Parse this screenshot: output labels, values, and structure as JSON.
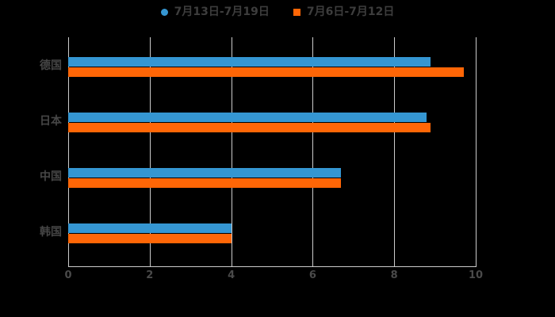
{
  "chart_data": {
    "type": "bar",
    "orientation": "horizontal",
    "title": "",
    "xlabel": "",
    "ylabel": "",
    "categories": [
      "德国",
      "日本",
      "中国",
      "韩国"
    ],
    "series": [
      {
        "name": "7月13日-7月19日",
        "color": "#3596d2",
        "marker": "circle",
        "values": [
          8.9,
          8.8,
          6.7,
          4.0
        ]
      },
      {
        "name": "7月6日-7月12日",
        "color": "#ff6606",
        "marker": "square",
        "values": [
          9.7,
          8.9,
          6.7,
          4.0
        ]
      }
    ],
    "xlim": [
      0,
      10
    ],
    "xticks": [
      0,
      2,
      4,
      6,
      8,
      10
    ],
    "grid": true,
    "legend_position": "top-center"
  },
  "colors": {
    "background": "#000000",
    "grid_line": "#cccccc",
    "axis_line": "#cccccc",
    "tick_label": "#4a4a4a",
    "category_label": "#464646",
    "legend_text": "#3d3d3d"
  }
}
